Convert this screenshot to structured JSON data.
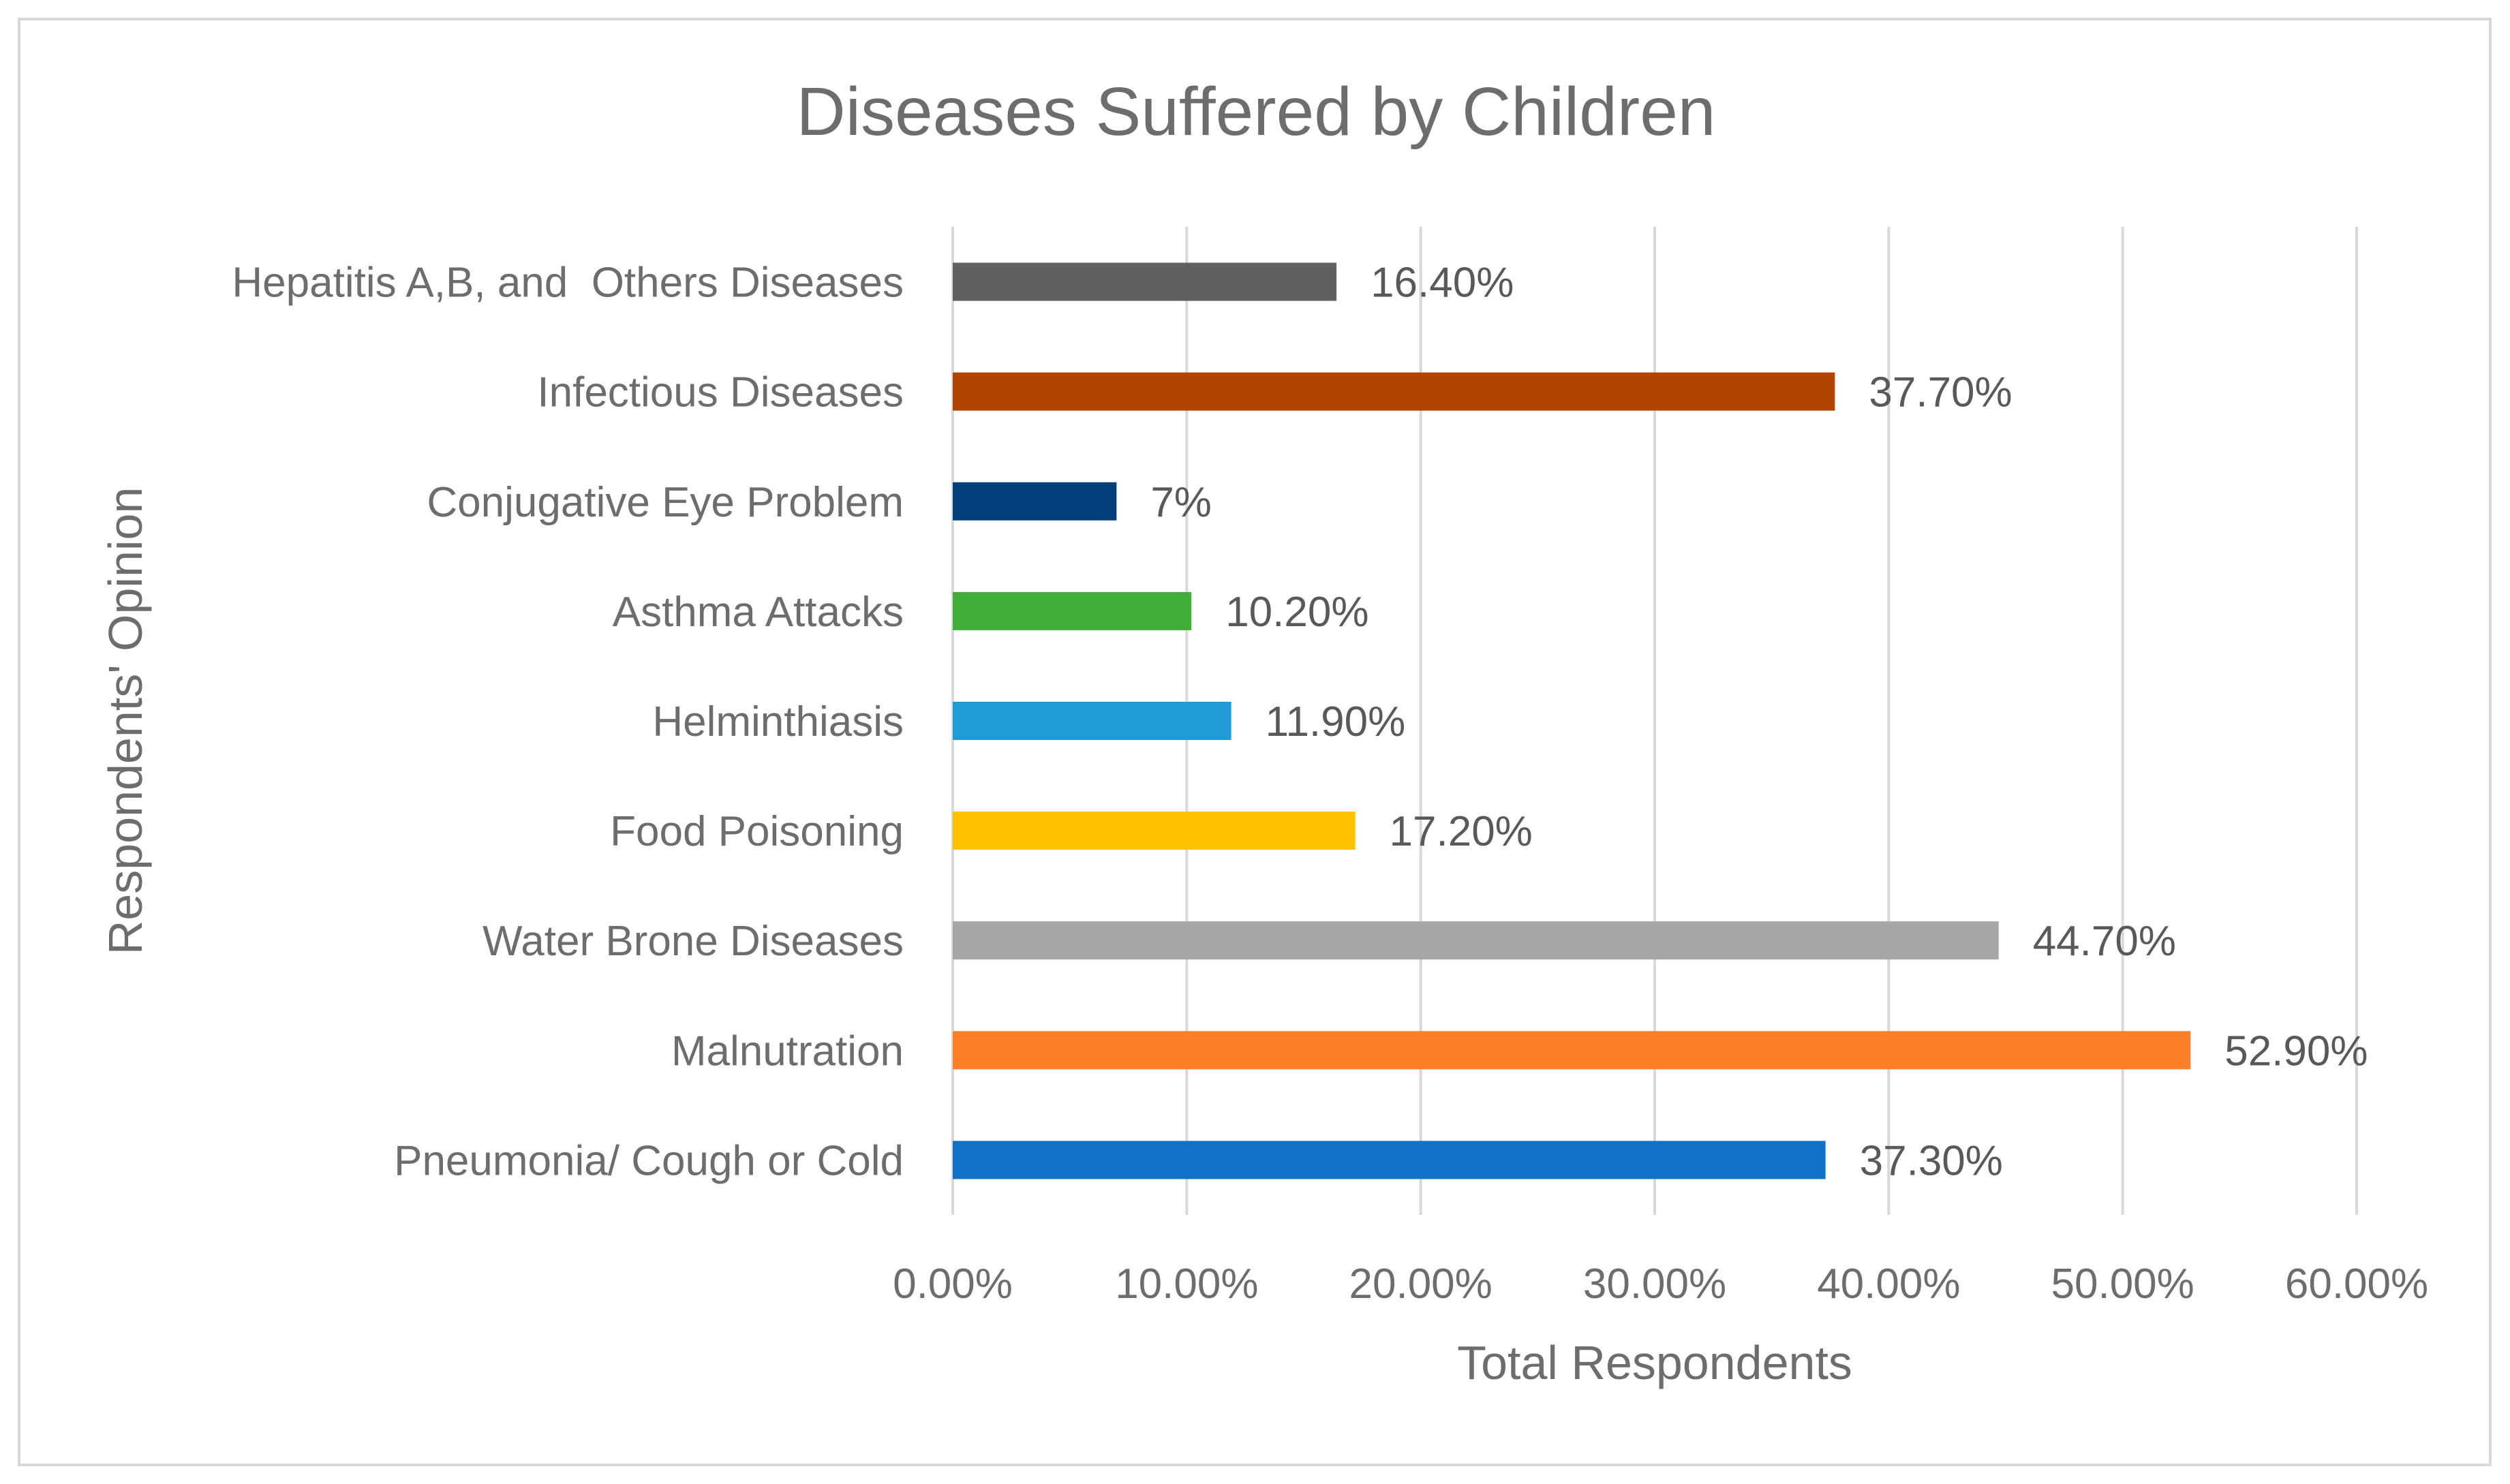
{
  "chart_data": {
    "type": "bar",
    "orientation": "horizontal",
    "title": "Diseases Suffered by Children",
    "xlabel": "Total Respondents",
    "ylabel": "Respondents' Opinion",
    "xlim": [
      0,
      60
    ],
    "xticks": [
      0,
      10,
      20,
      30,
      40,
      50,
      60
    ],
    "xtick_labels": [
      "0.00%",
      "10.00%",
      "20.00%",
      "30.00%",
      "40.00%",
      "50.00%",
      "60.00%"
    ],
    "grid": true,
    "categories": [
      "Hepatitis A,B, and  Others Diseases",
      "Infectious Diseases",
      "Conjugative Eye Problem",
      "Asthma Attacks",
      "Helminthiasis",
      "Food Poisoning",
      "Water Brone Diseases",
      "Malnutration",
      "Pneumonia/ Cough or Cold"
    ],
    "values": [
      16.4,
      37.7,
      7,
      10.2,
      11.9,
      17.2,
      44.7,
      52.9,
      37.3
    ],
    "data_labels": [
      "16.40%",
      "37.70%",
      "7%",
      "10.20%",
      "11.90%",
      "17.20%",
      "44.70%",
      "52.90%",
      "37.30%"
    ],
    "colors": [
      "#606060",
      "#b34400",
      "#003f7a",
      "#3fae38",
      "#1f9cd8",
      "#ffc000",
      "#a6a6a6",
      "#fe7f27",
      "#1370c7"
    ]
  }
}
